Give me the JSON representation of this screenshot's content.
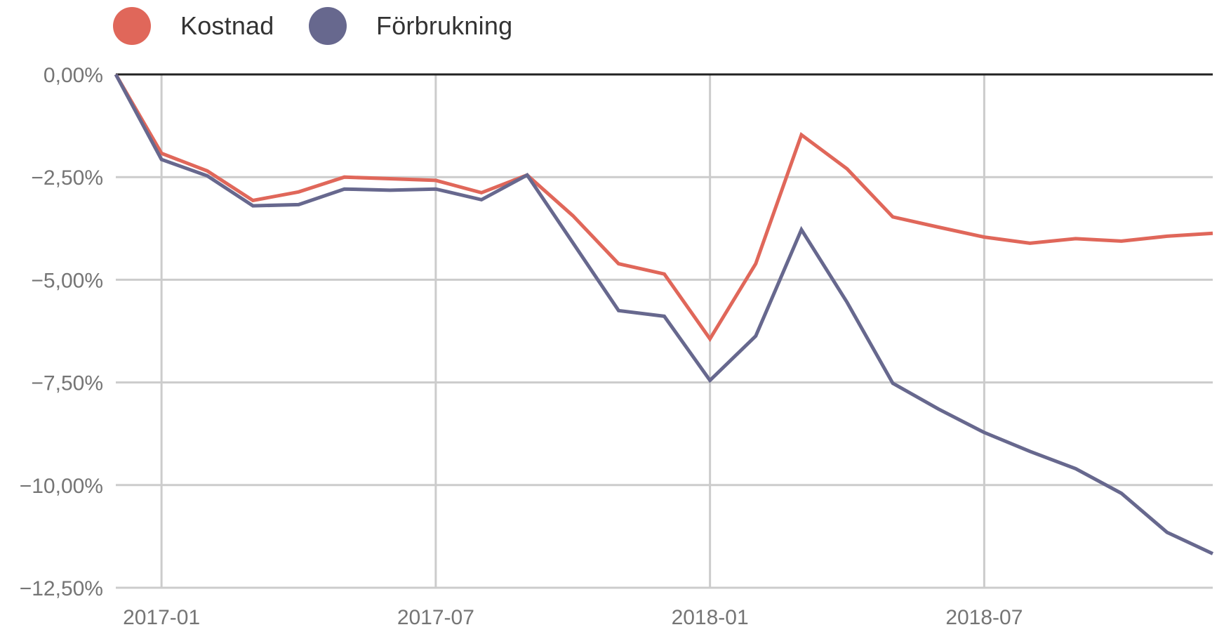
{
  "legend": {
    "items": [
      {
        "label": "Kostnad",
        "color": "#E0675A"
      },
      {
        "label": "Förbrukning",
        "color": "#67688E"
      }
    ]
  },
  "chart_data": {
    "type": "line",
    "title": "",
    "xlabel": "",
    "ylabel": "",
    "ylim": [
      -12.5,
      0
    ],
    "grid": true,
    "legend_position": "top-left",
    "y_tick_labels": [
      "0,00%",
      "−2,50%",
      "−5,00%",
      "−7,50%",
      "−10,00%",
      "−12,50%"
    ],
    "y_ticks": [
      0,
      -2.5,
      -5,
      -7.5,
      -10,
      -12.5
    ],
    "x_tick_labels": [
      "2017-01",
      "2017-07",
      "2018-01",
      "2018-07"
    ],
    "x": [
      "2016-12",
      "2017-01",
      "2017-02",
      "2017-03",
      "2017-04",
      "2017-05",
      "2017-06",
      "2017-07",
      "2017-08",
      "2017-09",
      "2017-10",
      "2017-11",
      "2017-12",
      "2018-01",
      "2018-02",
      "2018-03",
      "2018-04",
      "2018-05",
      "2018-06",
      "2018-07",
      "2018-08",
      "2018-09",
      "2018-10",
      "2018-11",
      "2018-12"
    ],
    "series": [
      {
        "name": "Kostnad",
        "color": "#E0675A",
        "values": [
          0,
          -1.92,
          -2.35,
          -3.07,
          -2.86,
          -2.5,
          -2.54,
          -2.58,
          -2.88,
          -2.45,
          -3.44,
          -4.61,
          -4.86,
          -6.44,
          -4.61,
          -1.47,
          -2.3,
          -3.47,
          -3.72,
          -3.96,
          -4.11,
          -4.0,
          -4.06,
          -3.94,
          -3.87
        ]
      },
      {
        "name": "Förbrukning",
        "color": "#67688E",
        "values": [
          0,
          -2.07,
          -2.47,
          -3.2,
          -3.17,
          -2.79,
          -2.82,
          -2.79,
          -3.05,
          -2.45,
          -4.1,
          -5.75,
          -5.89,
          -7.45,
          -6.37,
          -3.78,
          -5.55,
          -7.52,
          -8.15,
          -8.72,
          -9.18,
          -9.6,
          -10.2,
          -11.15,
          -11.67
        ]
      }
    ]
  }
}
